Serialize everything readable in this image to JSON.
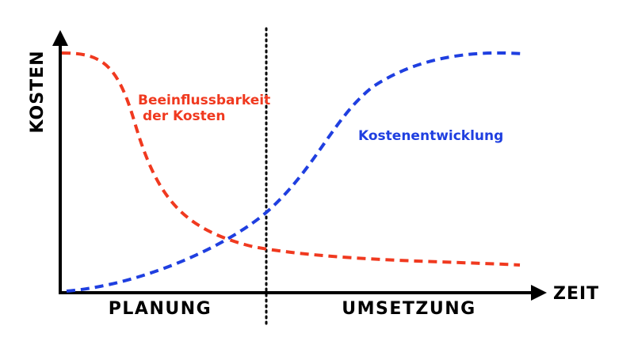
{
  "axes": {
    "y_label": "KOSTEN",
    "x_label": "ZEIT"
  },
  "phases": {
    "left": "PLANUNG",
    "right": "UMSETZUNG"
  },
  "curves": {
    "influence": {
      "label_line1": "Beeinflussbarkeit",
      "label_line2": "der Kosten",
      "color": "#f0391f"
    },
    "development": {
      "label": "Kostenentwicklung",
      "color": "#1f3fe0"
    }
  },
  "colors": {
    "axis": "#000000"
  }
}
